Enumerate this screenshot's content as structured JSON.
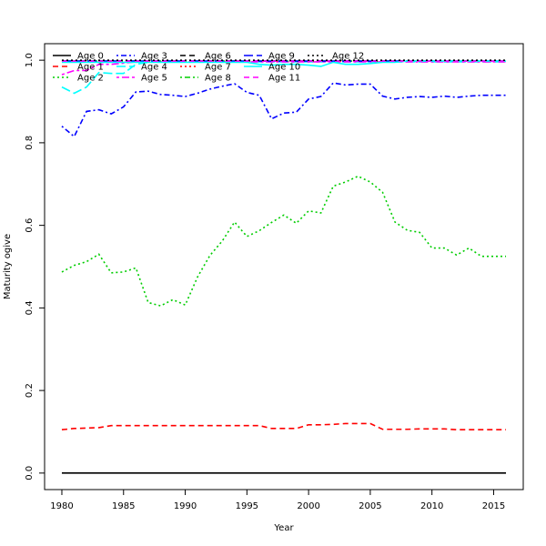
{
  "chart_data": {
    "type": "line",
    "title": "",
    "xlabel": "Year",
    "ylabel": "Maturity ogive",
    "xlim": [
      1978.6,
      2017.4
    ],
    "ylim": [
      -0.04,
      1.04
    ],
    "xticks": [
      1980,
      1985,
      1990,
      1995,
      2000,
      2005,
      2010,
      2015
    ],
    "yticks": [
      0.0,
      0.2,
      0.4,
      0.6,
      0.8,
      1.0
    ],
    "ytick_labels": [
      "0.0",
      "0.2",
      "0.4",
      "0.6",
      "0.8",
      "1.0"
    ],
    "grid": false,
    "legend_position": "top-left",
    "x": [
      1980,
      1981,
      1982,
      1983,
      1984,
      1985,
      1986,
      1987,
      1988,
      1989,
      1990,
      1991,
      1992,
      1993,
      1994,
      1995,
      1996,
      1997,
      1998,
      1999,
      2000,
      2001,
      2002,
      2003,
      2004,
      2005,
      2006,
      2007,
      2008,
      2009,
      2010,
      2011,
      2012,
      2013,
      2014,
      2015,
      2016
    ],
    "series": [
      {
        "name": "Age 0",
        "color": "#000000",
        "dash": "solid",
        "values": [
          0,
          0,
          0,
          0,
          0,
          0,
          0,
          0,
          0,
          0,
          0,
          0,
          0,
          0,
          0,
          0,
          0,
          0,
          0,
          0,
          0,
          0,
          0,
          0,
          0,
          0,
          0,
          0,
          0,
          0,
          0,
          0,
          0,
          0,
          0,
          0,
          0
        ]
      },
      {
        "name": "Age 1",
        "color": "#ff0000",
        "dash": "dashed",
        "values": [
          0.105,
          0.108,
          0.109,
          0.11,
          0.115,
          0.115,
          0.115,
          0.115,
          0.115,
          0.115,
          0.115,
          0.115,
          0.115,
          0.115,
          0.115,
          0.115,
          0.115,
          0.108,
          0.108,
          0.108,
          0.117,
          0.117,
          0.118,
          0.12,
          0.12,
          0.12,
          0.106,
          0.106,
          0.106,
          0.107,
          0.107,
          0.107,
          0.105,
          0.105,
          0.105,
          0.105,
          0.105
        ]
      },
      {
        "name": "Age 2",
        "color": "#00cd00",
        "dash": "dotted",
        "values": [
          0.487,
          0.503,
          0.512,
          0.53,
          0.485,
          0.487,
          0.497,
          0.413,
          0.405,
          0.42,
          0.407,
          0.475,
          0.527,
          0.562,
          0.608,
          0.573,
          0.587,
          0.607,
          0.625,
          0.605,
          0.635,
          0.63,
          0.695,
          0.705,
          0.719,
          0.705,
          0.68,
          0.608,
          0.588,
          0.583,
          0.545,
          0.545,
          0.528,
          0.545,
          0.525,
          0.525,
          0.525
        ]
      },
      {
        "name": "Age 3",
        "color": "#0000ff",
        "dash": "dotdash",
        "values": [
          0.84,
          0.815,
          0.876,
          0.88,
          0.87,
          0.887,
          0.923,
          0.925,
          0.917,
          0.915,
          0.912,
          0.92,
          0.93,
          0.937,
          0.943,
          0.922,
          0.915,
          0.858,
          0.872,
          0.874,
          0.906,
          0.912,
          0.945,
          0.94,
          0.942,
          0.942,
          0.913,
          0.906,
          0.91,
          0.912,
          0.91,
          0.913,
          0.91,
          0.913,
          0.915,
          0.915,
          0.915
        ]
      },
      {
        "name": "Age 4",
        "color": "#00ffff",
        "dash": "longdash",
        "values": [
          0.935,
          0.92,
          0.935,
          0.97,
          0.968,
          0.968,
          0.99,
          0.995,
          0.996,
          0.996,
          0.996,
          0.996,
          0.996,
          0.996,
          0.996,
          0.996,
          0.996,
          0.996,
          0.996,
          0.996,
          0.996,
          0.996,
          0.996,
          0.996,
          0.996,
          0.996,
          0.996,
          0.996,
          0.996,
          0.996,
          0.996,
          0.996,
          0.996,
          0.996,
          0.996,
          0.996,
          0.996
        ]
      },
      {
        "name": "Age 5",
        "color": "#ff00ff",
        "dash": "twodash",
        "values": [
          0.965,
          0.975,
          0.975,
          0.99,
          0.99,
          0.993,
          0.996,
          0.996,
          0.996,
          0.996,
          0.996,
          0.996,
          0.996,
          0.996,
          0.996,
          0.996,
          0.996,
          0.996,
          0.996,
          0.996,
          0.996,
          0.996,
          0.996,
          0.996,
          0.996,
          0.996,
          0.996,
          0.996,
          0.996,
          0.996,
          0.996,
          0.996,
          0.996,
          0.996,
          0.996,
          0.996,
          0.996
        ]
      },
      {
        "name": "Age 6",
        "color": "#000000",
        "dash": "dashed",
        "values": [
          0.998,
          0.998,
          0.998,
          0.998,
          0.998,
          0.998,
          0.998,
          0.998,
          0.998,
          0.998,
          0.998,
          0.998,
          0.998,
          0.998,
          0.998,
          0.998,
          0.998,
          0.998,
          0.998,
          0.998,
          0.998,
          0.998,
          0.998,
          0.998,
          0.998,
          0.998,
          0.998,
          0.998,
          0.998,
          0.998,
          0.998,
          0.998,
          0.998,
          0.998,
          0.998,
          0.998,
          0.998
        ]
      },
      {
        "name": "Age 7",
        "color": "#ff0000",
        "dash": "dotted",
        "values": [
          0.998,
          0.998,
          0.998,
          0.998,
          0.998,
          0.998,
          0.998,
          0.998,
          0.998,
          0.998,
          0.998,
          0.998,
          0.998,
          0.998,
          0.998,
          0.998,
          0.998,
          0.998,
          0.998,
          0.998,
          0.998,
          0.998,
          0.998,
          0.998,
          0.998,
          0.998,
          0.998,
          0.998,
          0.998,
          0.998,
          0.998,
          0.998,
          0.998,
          0.998,
          0.998,
          0.998,
          0.998
        ]
      },
      {
        "name": "Age 8",
        "color": "#00cd00",
        "dash": "dotdash",
        "values": [
          0.998,
          0.998,
          0.998,
          0.998,
          0.998,
          0.998,
          0.998,
          0.998,
          0.998,
          0.998,
          0.998,
          0.998,
          0.998,
          0.998,
          0.998,
          0.998,
          0.998,
          0.998,
          0.998,
          0.998,
          0.998,
          0.998,
          0.998,
          0.998,
          0.998,
          0.998,
          0.998,
          0.998,
          0.998,
          0.998,
          0.998,
          0.998,
          0.998,
          0.998,
          0.998,
          0.998,
          0.998
        ]
      },
      {
        "name": "Age 9",
        "color": "#0000ff",
        "dash": "longdash",
        "values": [
          0.998,
          0.998,
          0.998,
          0.998,
          0.998,
          0.998,
          0.998,
          0.998,
          0.998,
          0.998,
          0.998,
          0.998,
          0.998,
          0.998,
          0.998,
          0.998,
          0.998,
          0.998,
          0.998,
          0.998,
          0.998,
          0.998,
          0.998,
          0.998,
          0.998,
          0.998,
          0.998,
          0.998,
          0.998,
          0.998,
          0.998,
          0.998,
          0.998,
          0.998,
          0.998,
          0.998,
          0.998
        ]
      },
      {
        "name": "Age 10",
        "color": "#00ffff",
        "dash": "solid",
        "values": [
          0.995,
          0.995,
          0.995,
          0.995,
          0.995,
          0.995,
          0.995,
          0.995,
          0.995,
          0.995,
          0.995,
          0.995,
          0.995,
          0.995,
          0.995,
          0.995,
          0.99,
          0.988,
          0.99,
          0.99,
          0.988,
          0.985,
          0.995,
          0.99,
          0.99,
          0.992,
          0.995,
          0.995,
          0.998,
          0.998,
          0.998,
          0.998,
          0.998,
          0.998,
          0.998,
          0.998,
          0.998
        ]
      },
      {
        "name": "Age 11",
        "color": "#ff00ff",
        "dash": "dashed",
        "values": [
          0.998,
          0.998,
          0.998,
          0.998,
          0.998,
          0.998,
          0.998,
          0.998,
          0.998,
          0.998,
          0.998,
          0.998,
          0.998,
          0.998,
          0.998,
          0.998,
          0.998,
          0.998,
          0.998,
          0.998,
          0.998,
          0.998,
          0.998,
          0.998,
          0.998,
          0.998,
          0.998,
          0.998,
          0.998,
          0.998,
          0.998,
          0.998,
          0.998,
          0.998,
          0.998,
          0.998,
          0.998
        ]
      },
      {
        "name": "Age 12",
        "color": "#000000",
        "dash": "dotted",
        "values": [
          1.0,
          1.0,
          1.0,
          1.0,
          1.0,
          1.0,
          1.0,
          1.0,
          1.0,
          1.0,
          1.0,
          1.0,
          1.0,
          1.0,
          1.0,
          1.0,
          1.0,
          1.0,
          1.0,
          1.0,
          1.0,
          1.0,
          1.0,
          1.0,
          1.0,
          1.0,
          1.0,
          1.0,
          1.0,
          1.0,
          1.0,
          1.0,
          1.0,
          1.0,
          1.0,
          1.0,
          1.0
        ]
      }
    ]
  }
}
